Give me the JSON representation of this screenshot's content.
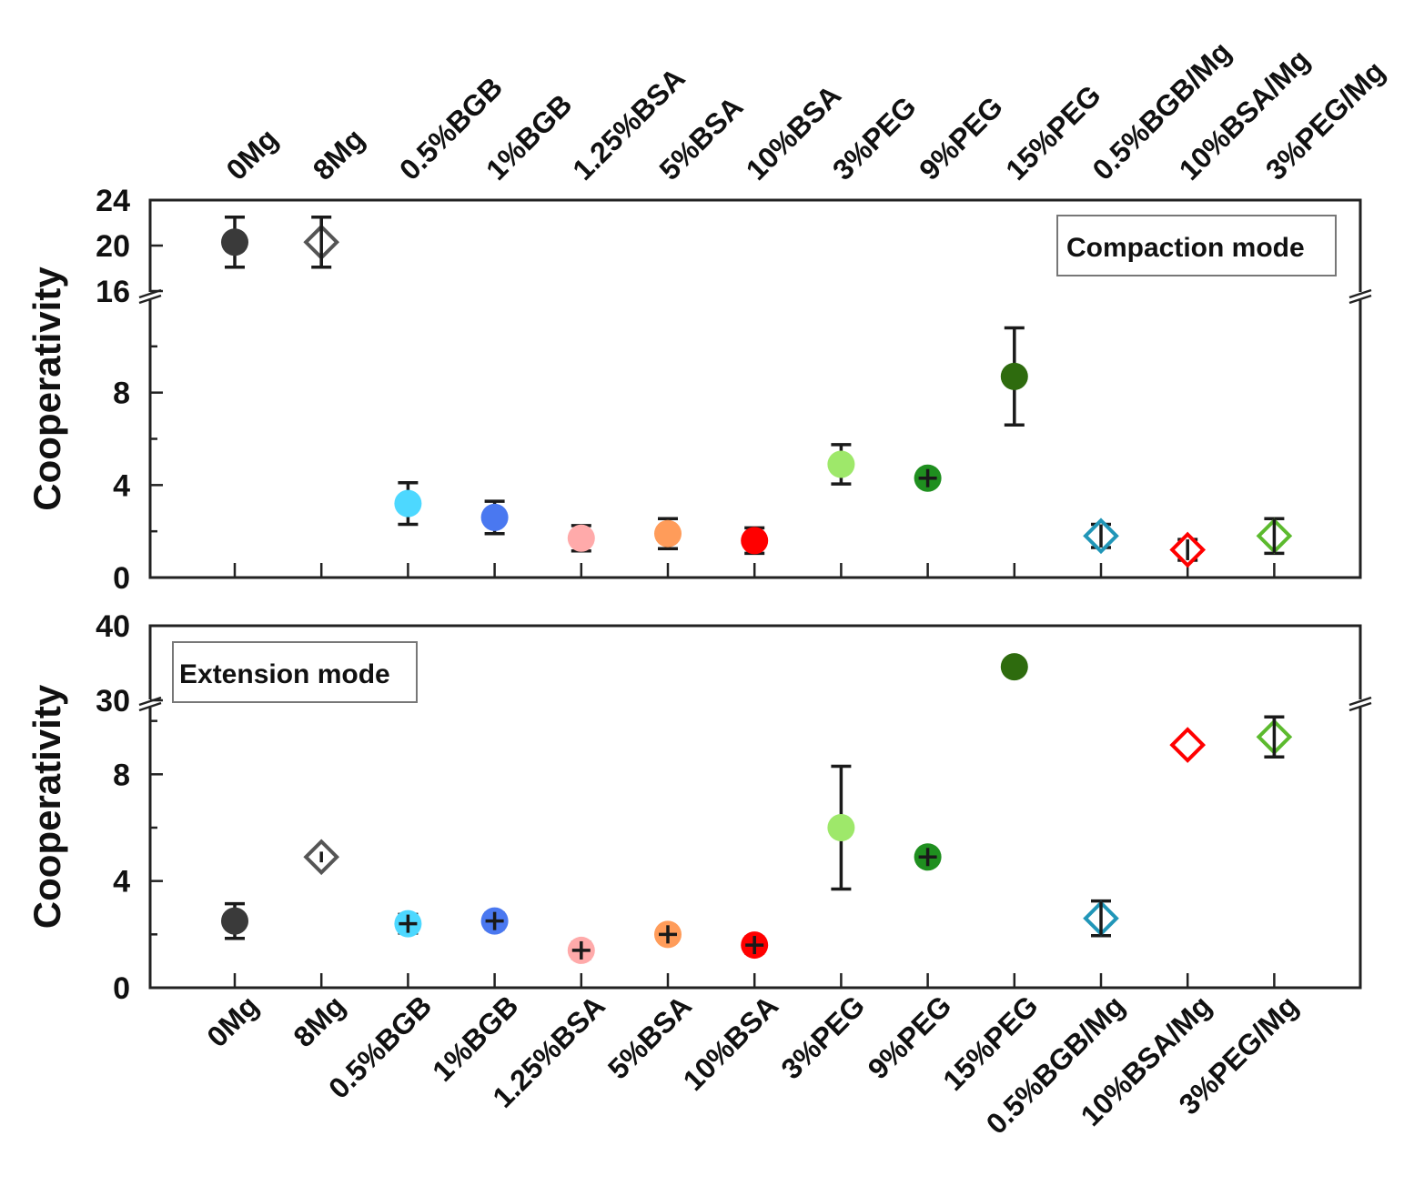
{
  "chart_data": [
    {
      "type": "scatter",
      "title": "Compaction mode",
      "xlabel": "",
      "ylabel": "Cooperativity",
      "categories": [
        "0Mg",
        "8Mg",
        "0.5%BGB",
        "1%BGB",
        "1.25%BSA",
        "5%BSA",
        "10%BSA",
        "3%PEG",
        "9%PEG",
        "15%PEG",
        "0.5%BGB/Mg",
        "10%BSA/Mg",
        "3%PEG/Mg"
      ],
      "y_ticks_lower": [
        "0",
        "4",
        "8",
        "16"
      ],
      "y_ticks_upper": [
        "20",
        "24"
      ],
      "ylim_lower": [
        0,
        12
      ],
      "ylim_upper": [
        16,
        24
      ],
      "axis_break": true,
      "points": [
        {
          "category": "0Mg",
          "value": 20.3,
          "err": 2.2,
          "color": "#3a3a3a",
          "marker": "circle"
        },
        {
          "category": "8Mg",
          "value": 20.3,
          "err": 2.2,
          "color": "#555555",
          "marker": "diamond-open"
        },
        {
          "category": "0.5%BGB",
          "value": 3.2,
          "err": 0.9,
          "color": "#4dd8ff",
          "marker": "circle"
        },
        {
          "category": "1%BGB",
          "value": 2.6,
          "err": 0.7,
          "color": "#4a78f0",
          "marker": "circle"
        },
        {
          "category": "1.25%BSA",
          "value": 1.7,
          "err": 0.55,
          "color": "#ffaaaa",
          "marker": "circle"
        },
        {
          "category": "5%BSA",
          "value": 1.9,
          "err": 0.65,
          "color": "#ff9c5a",
          "marker": "circle"
        },
        {
          "category": "10%BSA",
          "value": 1.6,
          "err": 0.55,
          "color": "#ff0000",
          "marker": "circle"
        },
        {
          "category": "3%PEG",
          "value": 4.9,
          "err": 0.85,
          "color": "#9ee86a",
          "marker": "circle"
        },
        {
          "category": "9%PEG",
          "value": 4.3,
          "err": 0.25,
          "color": "#1f8f1f",
          "marker": "circle"
        },
        {
          "category": "15%PEG",
          "value": 8.7,
          "err": 2.1,
          "color": "#2e6b0e",
          "marker": "circle"
        },
        {
          "category": "0.5%BGB/Mg",
          "value": 1.8,
          "err": 0.5,
          "color": "#2196b8",
          "marker": "diamond-open"
        },
        {
          "category": "10%BSA/Mg",
          "value": 1.2,
          "err": 0.45,
          "color": "#ff0000",
          "marker": "diamond-open"
        },
        {
          "category": "3%PEG/Mg",
          "value": 1.8,
          "err": 0.75,
          "color": "#5cba2e",
          "marker": "diamond-open"
        }
      ]
    },
    {
      "type": "scatter",
      "title": "Extension mode",
      "xlabel": "",
      "ylabel": "Cooperativity",
      "categories": [
        "0Mg",
        "8Mg",
        "0.5%BGB",
        "1%BGB",
        "1.25%BSA",
        "5%BSA",
        "10%BSA",
        "3%PEG",
        "9%PEG",
        "15%PEG",
        "0.5%BGB/Mg",
        "10%BSA/Mg",
        "3%PEG/Mg"
      ],
      "y_ticks_lower": [
        "0",
        "4",
        "8",
        "30"
      ],
      "y_ticks_upper": [
        "40"
      ],
      "ylim_lower": [
        0,
        10.5
      ],
      "ylim_upper": [
        30,
        40
      ],
      "axis_break": true,
      "points": [
        {
          "category": "0Mg",
          "value": 2.5,
          "err": 0.65,
          "color": "#3a3a3a",
          "marker": "circle"
        },
        {
          "category": "8Mg",
          "value": 4.9,
          "err": 0.2,
          "color": "#555555",
          "marker": "diamond-open"
        },
        {
          "category": "0.5%BGB",
          "value": 2.4,
          "err": 0.35,
          "color": "#4dd8ff",
          "marker": "circle"
        },
        {
          "category": "1%BGB",
          "value": 2.5,
          "err": 0.3,
          "color": "#4a78f0",
          "marker": "circle"
        },
        {
          "category": "1.25%BSA",
          "value": 1.4,
          "err": 0.3,
          "color": "#ffaaaa",
          "marker": "circle"
        },
        {
          "category": "5%BSA",
          "value": 2.0,
          "err": 0.25,
          "color": "#ff9c5a",
          "marker": "circle"
        },
        {
          "category": "10%BSA",
          "value": 1.6,
          "err": 0.3,
          "color": "#ff0000",
          "marker": "circle"
        },
        {
          "category": "3%PEG",
          "value": 6.0,
          "err": 2.3,
          "color": "#9ee86a",
          "marker": "circle"
        },
        {
          "category": "9%PEG",
          "value": 4.9,
          "err": 0.2,
          "color": "#1f8f1f",
          "marker": "circle"
        },
        {
          "category": "15%PEG",
          "value": 34.5,
          "err": 0,
          "color": "#2e6b0e",
          "marker": "circle"
        },
        {
          "category": "0.5%BGB/Mg",
          "value": 2.6,
          "err": 0.65,
          "color": "#2196b8",
          "marker": "diamond-open"
        },
        {
          "category": "10%BSA/Mg",
          "value": 9.1,
          "err": 0,
          "color": "#ff0000",
          "marker": "diamond-open"
        },
        {
          "category": "3%PEG/Mg",
          "value": 9.4,
          "err": 0.75,
          "color": "#5cba2e",
          "marker": "diamond-open"
        }
      ]
    }
  ]
}
